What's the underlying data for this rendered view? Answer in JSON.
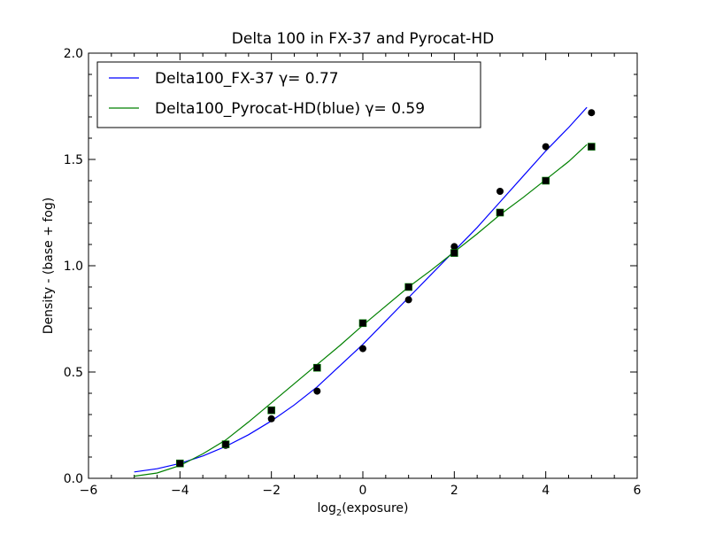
{
  "chart_data": {
    "type": "line",
    "title": "Delta 100 in FX-37 and Pyrocat-HD",
    "xlabel": "log₂(exposure)",
    "xlabel_parts": {
      "base": "log",
      "sub": "2",
      "rest": "(exposure)"
    },
    "ylabel": "Density - (base + fog)",
    "xlim": [
      -6,
      6
    ],
    "ylim": [
      0.0,
      2.0
    ],
    "xticks": [
      -6,
      -4,
      -2,
      0,
      2,
      4,
      6
    ],
    "xtick_labels": [
      "−6",
      "−4",
      "−2",
      "0",
      "2",
      "4",
      "6"
    ],
    "yticks": [
      0.0,
      0.5,
      1.0,
      1.5,
      2.0
    ],
    "ytick_labels": [
      "0.0",
      "0.5",
      "1.0",
      "1.5",
      "2.0"
    ],
    "grid": false,
    "legend_position": "top-left",
    "series": [
      {
        "name": "Delta100_FX-37 γ= 0.77",
        "legend_main": "Delta100_FX-37 ",
        "legend_gamma": "γ= 0.77",
        "color": "#0000ff",
        "marker": "circle",
        "points": {
          "x": [
            -4,
            -3,
            -2,
            -1,
            0,
            1,
            2,
            3,
            4,
            5
          ],
          "y": [
            0.07,
            0.155,
            0.28,
            0.41,
            0.61,
            0.84,
            1.09,
            1.35,
            1.56,
            1.72
          ]
        },
        "fit": {
          "x": [
            -5,
            -4.5,
            -4,
            -3.5,
            -3,
            -2.5,
            -2,
            -1.5,
            -1,
            -0.5,
            0,
            0.5,
            1,
            1.5,
            2,
            2.5,
            3,
            3.5,
            4,
            4.5,
            4.9
          ],
          "y": [
            0.03,
            0.045,
            0.07,
            0.105,
            0.15,
            0.205,
            0.27,
            0.345,
            0.43,
            0.53,
            0.63,
            0.74,
            0.85,
            0.96,
            1.07,
            1.18,
            1.3,
            1.42,
            1.54,
            1.65,
            1.745
          ]
        }
      },
      {
        "name": "Delta100_Pyrocat-HD(blue) γ= 0.59",
        "legend_main": "Delta100_Pyrocat-HD(blue) ",
        "legend_gamma": "γ= 0.59",
        "color": "#008000",
        "marker": "square",
        "points": {
          "x": [
            -4,
            -3,
            -2,
            -1,
            0,
            1,
            2,
            3,
            4,
            5
          ],
          "y": [
            0.07,
            0.16,
            0.32,
            0.52,
            0.73,
            0.9,
            1.06,
            1.25,
            1.4,
            1.56
          ]
        },
        "fit": {
          "x": [
            -5,
            -4.5,
            -4,
            -3.5,
            -3,
            -2.5,
            -2,
            -1.5,
            -1,
            -0.5,
            0,
            0.5,
            1,
            1.5,
            2,
            2.5,
            3,
            3.5,
            4,
            4.5,
            4.9
          ],
          "y": [
            0.01,
            0.025,
            0.06,
            0.115,
            0.18,
            0.265,
            0.355,
            0.445,
            0.535,
            0.625,
            0.72,
            0.81,
            0.9,
            0.98,
            1.065,
            1.15,
            1.24,
            1.32,
            1.405,
            1.49,
            1.57
          ]
        }
      }
    ]
  }
}
